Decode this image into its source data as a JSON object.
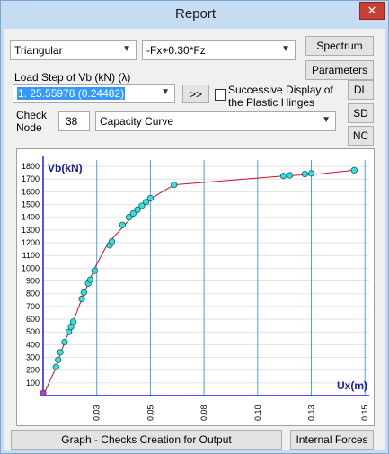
{
  "window": {
    "title": "Report"
  },
  "controls": {
    "load_pattern": "Triangular",
    "load_case": "-Fx+0.30*Fz",
    "spectrum_label": "Spectrum",
    "parameters_label": "Parameters",
    "load_step_label": "Load Step of Vb (kN)   (λ)",
    "load_step_value": "1. 25.55978 (0.24482)",
    "next_label": ">>",
    "successive_label_1": "Successive Display of",
    "successive_label_2": "the Plastic Hinges",
    "dl_label": "DL",
    "sd_label": "SD",
    "nc_label": "NC",
    "check_node_label_1": "Check",
    "check_node_label_2": "Node",
    "check_node_value": "38",
    "curve_type": "Capacity Curve",
    "graph_button_label": "Graph - Checks Creation for Output",
    "internal_forces_label": "Internal Forces"
  },
  "colors": {
    "curve": "#c8102e",
    "marker": "#33e0e0",
    "origin_marker": "#cc33cc",
    "axis": "#1a1aff",
    "grid": "#4aa3df"
  },
  "chart_data": {
    "type": "scatter",
    "ylabel": "Vb(kN)",
    "xlabel": "Ux(m)",
    "xlim": [
      0,
      0.152
    ],
    "ylim": [
      0,
      1850
    ],
    "xticks": [
      "0.03",
      "0.05",
      "0.08",
      "0.10",
      "0.13",
      "0.15"
    ],
    "xtick_values": [
      0.025,
      0.05,
      0.075,
      0.1,
      0.125,
      0.15
    ],
    "yticks": [
      100,
      200,
      300,
      400,
      500,
      600,
      700,
      800,
      900,
      1000,
      1100,
      1200,
      1300,
      1400,
      1500,
      1600,
      1700,
      1800
    ],
    "curve": [
      [
        0,
        0
      ],
      [
        0.006,
        220
      ],
      [
        0.008,
        330
      ],
      [
        0.012,
        500
      ],
      [
        0.014,
        580
      ],
      [
        0.018,
        760
      ],
      [
        0.021,
        880
      ],
      [
        0.024,
        1000
      ],
      [
        0.03,
        1190
      ],
      [
        0.038,
        1340
      ],
      [
        0.045,
        1470
      ],
      [
        0.05,
        1545
      ],
      [
        0.061,
        1655
      ],
      [
        0.112,
        1725
      ],
      [
        0.128,
        1740
      ],
      [
        0.145,
        1770
      ]
    ],
    "points": [
      [
        0.0,
        20,
        "origin"
      ],
      [
        0.006,
        225
      ],
      [
        0.007,
        280
      ],
      [
        0.008,
        340
      ],
      [
        0.01,
        420
      ],
      [
        0.012,
        500
      ],
      [
        0.013,
        540
      ],
      [
        0.014,
        580
      ],
      [
        0.018,
        760
      ],
      [
        0.019,
        810
      ],
      [
        0.021,
        880
      ],
      [
        0.022,
        910
      ],
      [
        0.024,
        980
      ],
      [
        0.031,
        1180
      ],
      [
        0.032,
        1210
      ],
      [
        0.037,
        1340
      ],
      [
        0.04,
        1400
      ],
      [
        0.042,
        1430
      ],
      [
        0.044,
        1460
      ],
      [
        0.046,
        1490
      ],
      [
        0.048,
        1520
      ],
      [
        0.05,
        1550
      ],
      [
        0.061,
        1655
      ],
      [
        0.112,
        1725
      ],
      [
        0.115,
        1730
      ],
      [
        0.122,
        1740
      ],
      [
        0.125,
        1745
      ],
      [
        0.145,
        1770
      ]
    ]
  }
}
